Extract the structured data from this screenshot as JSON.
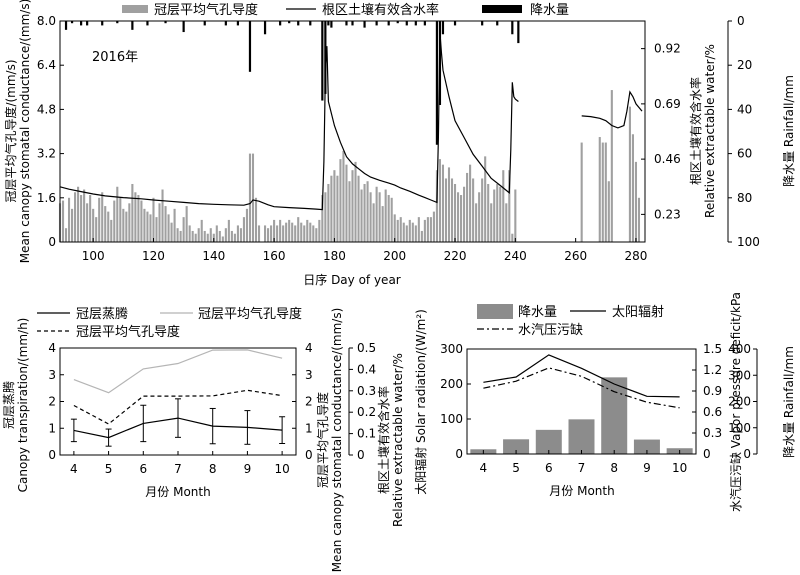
{
  "chart_data": [
    {
      "id": "top",
      "type": "bar+line",
      "year_label": "2016年",
      "legend": [
        {
          "label": "冠层平均气孔导度",
          "kind": "bar",
          "color": "#a0a0a0"
        },
        {
          "label": "根区土壤有效含水率",
          "kind": "line",
          "color": "#000000"
        },
        {
          "label": "降水量",
          "kind": "bar",
          "color": "#000000"
        }
      ],
      "xlabel": "日序 Day of year",
      "ylabel_left": [
        "冠层平均气孔导度/(mm/s)",
        "Mean canopy stomatal conductance/(mm/s)"
      ],
      "ylabel_right1": [
        "根区土壤有效含水率",
        "Relative extractable water/%"
      ],
      "ylabel_right2": "降水量 Rainfall/mm",
      "xlim": [
        89,
        283
      ],
      "xticks": [
        "100",
        "120",
        "140",
        "160",
        "180",
        "200",
        "220",
        "240",
        "260",
        "280"
      ],
      "xtick_values": [
        100,
        120,
        140,
        160,
        180,
        200,
        220,
        240,
        260,
        280
      ],
      "ylim_left": [
        0,
        8.0
      ],
      "yticks_left": [
        "0",
        "1.6",
        "3.2",
        "4.8",
        "6.4",
        "8.0"
      ],
      "ytick_left_values": [
        0,
        1.6,
        3.2,
        4.8,
        6.4,
        8.0
      ],
      "ylim_right1": [
        0.115,
        1.035
      ],
      "yticks_right1": [
        "0.23",
        "0.46",
        "0.69",
        "0.92"
      ],
      "ytick_right1_values": [
        0.23,
        0.46,
        0.69,
        0.92
      ],
      "ylim_right2": [
        100,
        0
      ],
      "yticks_right2": [
        "0",
        "20",
        "40",
        "60",
        "80",
        "100"
      ],
      "ytick_right2_values": [
        0,
        20,
        40,
        60,
        80,
        100
      ],
      "conductance": {
        "day": [
          89,
          90,
          91,
          92,
          93,
          94,
          95,
          96,
          97,
          98,
          99,
          100,
          101,
          102,
          103,
          104,
          105,
          106,
          107,
          108,
          109,
          110,
          111,
          112,
          113,
          114,
          115,
          116,
          117,
          118,
          119,
          120,
          121,
          122,
          123,
          124,
          125,
          126,
          127,
          128,
          129,
          130,
          131,
          132,
          133,
          134,
          135,
          136,
          137,
          138,
          139,
          140,
          141,
          142,
          143,
          144,
          145,
          146,
          147,
          148,
          149,
          150,
          151,
          152,
          153,
          154,
          155,
          157,
          158,
          159,
          160,
          161,
          162,
          163,
          164,
          165,
          166,
          167,
          168,
          169,
          170,
          171,
          172,
          173,
          174,
          175,
          176,
          177,
          178,
          179,
          180,
          181,
          182,
          183,
          184,
          185,
          186,
          187,
          188,
          189,
          190,
          191,
          192,
          193,
          194,
          195,
          196,
          197,
          198,
          199,
          200,
          201,
          202,
          203,
          204,
          205,
          206,
          207,
          208,
          209,
          210,
          211,
          212,
          213,
          214,
          215,
          216,
          217,
          218,
          219,
          220,
          221,
          222,
          223,
          224,
          225,
          226,
          227,
          228,
          229,
          230,
          231,
          232,
          233,
          234,
          235,
          236,
          237,
          238,
          239,
          240,
          262,
          268,
          269,
          270,
          271,
          272,
          278,
          279,
          280,
          281
        ],
        "value": [
          1.4,
          1.5,
          0.5,
          1.6,
          1.2,
          1.8,
          2.0,
          1.7,
          1.9,
          1.4,
          1.7,
          1.2,
          0.9,
          1.6,
          1.8,
          1.3,
          1.1,
          0.8,
          1.5,
          2.0,
          1.6,
          1.2,
          1.1,
          1.4,
          2.1,
          1.8,
          1.7,
          1.5,
          1.2,
          1.1,
          1.0,
          1.6,
          0.9,
          1.4,
          1.9,
          1.3,
          1.0,
          0.7,
          1.2,
          0.5,
          0.4,
          0.9,
          1.3,
          0.6,
          0.4,
          0.3,
          0.5,
          0.8,
          0.4,
          0.3,
          0.5,
          0.3,
          0.6,
          0.4,
          0.2,
          0.5,
          0.8,
          0.4,
          0.3,
          0.6,
          0.5,
          0.9,
          1.2,
          3.2,
          3.2,
          1.6,
          0.6,
          0.6,
          0.5,
          0.6,
          0.8,
          0.6,
          0.8,
          0.6,
          0.7,
          0.8,
          0.7,
          0.6,
          0.9,
          0.7,
          0.6,
          0.8,
          0.7,
          0.6,
          0.5,
          0.8,
          1.7,
          1.8,
          2.1,
          2.4,
          2.6,
          2.4,
          3.0,
          3.3,
          2.8,
          2.2,
          2.6,
          2.9,
          2.4,
          1.9,
          2.1,
          2.2,
          1.8,
          1.4,
          2.0,
          1.8,
          1.3,
          1.9,
          1.7,
          1.6,
          1.0,
          0.8,
          0.9,
          0.7,
          0.6,
          0.8,
          0.7,
          0.6,
          0.9,
          0.4,
          0.8,
          0.9,
          0.9,
          1.1,
          2.6,
          3.0,
          2.8,
          2.3,
          2.7,
          2.3,
          2.1,
          1.8,
          1.7,
          2.0,
          2.5,
          2.8,
          2.3,
          1.4,
          1.8,
          2.3,
          3.1,
          2.1,
          1.4,
          1.9,
          2.1,
          2.0,
          2.6,
          1.4,
          2.6,
          0.3,
          1.9,
          3.6,
          3.8,
          3.6,
          3.6,
          2.2,
          5.5,
          4.9,
          3.9,
          2.9,
          1.6
        ]
      },
      "rainfall": {
        "day": [
          91,
          93,
          96,
          98,
          103,
          108,
          113,
          118,
          124,
          130,
          137,
          144,
          148,
          152,
          157,
          162,
          165,
          168,
          172,
          176,
          177,
          178,
          179,
          184,
          186,
          190,
          194,
          198,
          201,
          204,
          207,
          210,
          214,
          215,
          216,
          220,
          229,
          234,
          239,
          241
        ],
        "value": [
          4,
          1,
          2,
          2,
          2,
          1,
          4,
          2,
          1,
          5,
          2,
          2,
          2,
          23,
          6,
          2,
          1,
          2,
          2,
          36,
          33,
          2,
          3,
          2,
          2,
          3,
          2,
          2,
          1,
          2,
          2,
          2,
          56,
          38,
          6,
          2,
          2,
          2,
          6,
          10
        ]
      },
      "rew_segments": [
        {
          "day": [
            89,
            92,
            96,
            100,
            104,
            110,
            116,
            120,
            125,
            130,
            135,
            140,
            145,
            150,
            152,
            153,
            155,
            158,
            160,
            165,
            170,
            174,
            176,
            176.5,
            177,
            177.5,
            178,
            180,
            182,
            184,
            186,
            188,
            190,
            192,
            195,
            198,
            200,
            202,
            205,
            208,
            210,
            212,
            214,
            214.5,
            215,
            215.5,
            216,
            218,
            220,
            223,
            226,
            229,
            232,
            235,
            237,
            238,
            238.5,
            239,
            239.5,
            240,
            241
          ],
          "value": [
            0.345,
            0.335,
            0.325,
            0.315,
            0.307,
            0.3,
            0.295,
            0.29,
            0.285,
            0.28,
            0.275,
            0.272,
            0.27,
            0.268,
            0.275,
            0.29,
            0.285,
            0.27,
            0.262,
            0.258,
            0.255,
            0.252,
            0.25,
            0.45,
            0.82,
            0.93,
            0.7,
            0.6,
            0.53,
            0.47,
            0.44,
            0.42,
            0.4,
            0.385,
            0.372,
            0.36,
            0.352,
            0.34,
            0.326,
            0.31,
            0.3,
            0.29,
            0.28,
            0.55,
            0.99,
            0.9,
            0.83,
            0.72,
            0.62,
            0.55,
            0.48,
            0.43,
            0.38,
            0.35,
            0.33,
            0.32,
            0.5,
            0.78,
            0.72,
            0.71,
            0.7
          ]
        },
        {
          "day": [
            262,
            265,
            268,
            270,
            272,
            274,
            276,
            277,
            278,
            279,
            280,
            282
          ],
          "value": [
            0.64,
            0.637,
            0.63,
            0.62,
            0.6,
            0.59,
            0.6,
            0.66,
            0.74,
            0.72,
            0.69,
            0.66
          ]
        }
      ]
    },
    {
      "id": "bottom_left",
      "type": "line",
      "legend": [
        {
          "label": "冠层蒸腾",
          "style": "solid",
          "color": "#000000"
        },
        {
          "label": "冠层平均气孔导度",
          "style": "solid",
          "color": "#b5b5b5"
        },
        {
          "label": "冠层平均气孔导度",
          "style": "dashed",
          "color": "#000000"
        }
      ],
      "xlabel": "月份 Month",
      "ylabel_left": [
        "冠层蒸腾",
        "Canopy transpiration/(mm/h)"
      ],
      "ylabel_right1": [
        "冠层平均气孔导度",
        "Mean canopy stomatal conductance/(mm/s)"
      ],
      "ylabel_right2": [
        "根区土壤有效含水率",
        "Relative extractable water/%"
      ],
      "xlim": [
        3.6,
        10.4
      ],
      "x": [
        4,
        5,
        6,
        7,
        8,
        9,
        10
      ],
      "xticks": [
        "4",
        "5",
        "6",
        "7",
        "8",
        "9",
        "10"
      ],
      "ylim_left": [
        0,
        4
      ],
      "yticks_left": [
        "0",
        "1",
        "2",
        "3",
        "4"
      ],
      "ytick_left_values": [
        0,
        1,
        2,
        3,
        4
      ],
      "ylim_right1": [
        0,
        4
      ],
      "yticks_right1": [
        "0",
        "1",
        "2",
        "3",
        "4"
      ],
      "ytick_right1_values": [
        0,
        1,
        2,
        3,
        4
      ],
      "ylim_right2": [
        0,
        0.5
      ],
      "yticks_right2": [
        "0",
        "0.1",
        "0.2",
        "0.3",
        "0.4",
        "0.5"
      ],
      "ytick_right2_values": [
        0,
        0.1,
        0.2,
        0.3,
        0.4,
        0.5
      ],
      "series": [
        {
          "name": "冠层蒸腾",
          "values": [
            0.92,
            0.65,
            1.18,
            1.38,
            1.08,
            1.03,
            0.93
          ],
          "err": [
            0.42,
            0.32,
            0.68,
            0.72,
            0.66,
            0.63,
            0.5
          ]
        },
        {
          "name": "冠层平均气孔导度",
          "values": [
            2.82,
            2.33,
            3.22,
            3.42,
            3.92,
            3.93,
            3.62
          ]
        },
        {
          "name": "冠层平均气孔导度",
          "values": [
            1.85,
            1.16,
            2.2,
            2.2,
            2.21,
            2.42,
            2.22
          ]
        }
      ]
    },
    {
      "id": "bottom_right",
      "type": "bar+line",
      "legend": [
        {
          "label": "降水量",
          "kind": "bar",
          "color": "#8c8c8c"
        },
        {
          "label": "太阳辐射",
          "kind": "line",
          "style": "solid",
          "color": "#000000"
        },
        {
          "label": "水汽压污缺",
          "kind": "line",
          "style": "dashdot",
          "color": "#000000"
        }
      ],
      "xlabel": "月份 Month",
      "ylabel_left": [
        "太阳辐射 Solar radiation/(W/m²)"
      ],
      "ylabel_right1": [
        "水汽压污缺 Vapor pressure deficit/kPa"
      ],
      "ylabel_right2": [
        "降水量 Rainfall/mm"
      ],
      "xlim": [
        3.5,
        10.5
      ],
      "x": [
        4,
        5,
        6,
        7,
        8,
        9,
        10
      ],
      "xticks": [
        "4",
        "5",
        "6",
        "7",
        "8",
        "9",
        "10"
      ],
      "ylim_left": [
        0,
        300
      ],
      "yticks_left": [
        "0",
        "100",
        "200",
        "300"
      ],
      "ytick_left_values": [
        0,
        100,
        200,
        300
      ],
      "ylim_right1": [
        0,
        1.5
      ],
      "yticks_right1": [
        "0",
        "0.3",
        "0.6",
        "0.9",
        "1.2",
        "1.5"
      ],
      "ytick_right1_values": [
        0,
        0.3,
        0.6,
        0.9,
        1.2,
        1.5
      ],
      "ylim_right2": [
        0,
        400
      ],
      "yticks_right2": [
        "0",
        "100",
        "200",
        "300",
        "400"
      ],
      "ytick_right2_values": [
        0,
        100,
        200,
        300,
        400
      ],
      "rainfall": [
        18,
        56,
        92,
        132,
        292,
        55,
        22
      ],
      "solar_radiation": [
        205,
        220,
        283,
        245,
        200,
        165,
        163
      ],
      "vpd": [
        0.94,
        1.04,
        1.23,
        1.11,
        0.89,
        0.74,
        0.66
      ]
    }
  ]
}
